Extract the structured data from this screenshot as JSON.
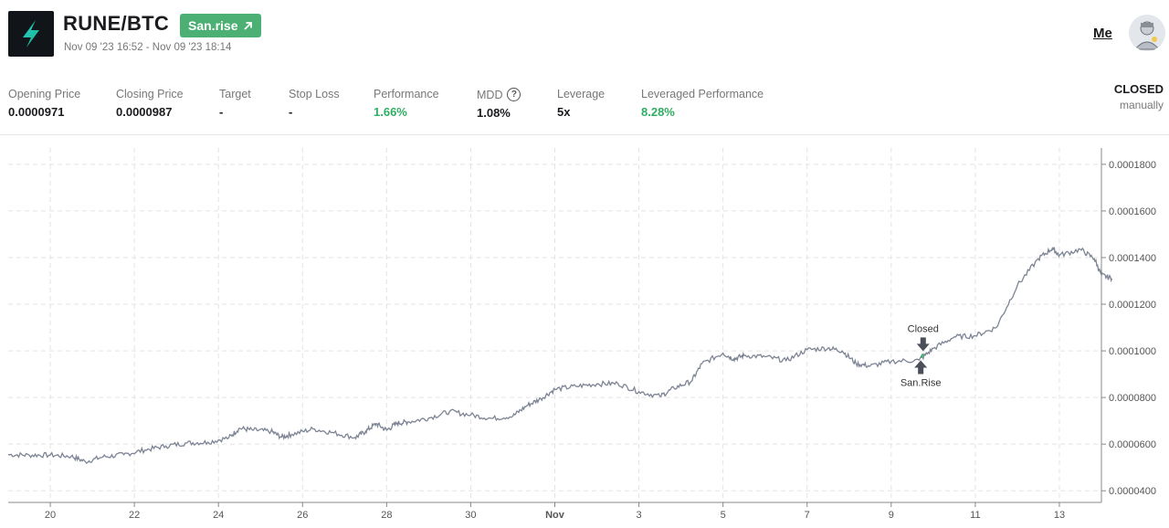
{
  "header": {
    "pair": "RUNE/BTC",
    "badge_label": "San.rise",
    "date_range": "Nov 09 '23 16:52 - Nov 09 '23 18:14",
    "user_link": "Me",
    "logo_icon": "thorchain-logo-icon",
    "badge_icon": "arrow-up-right-icon",
    "avatar_icon": "user-avatar-icon"
  },
  "stats": [
    {
      "label": "Opening Price",
      "value": "0.0000971",
      "tone": "normal"
    },
    {
      "label": "Closing Price",
      "value": "0.0000987",
      "tone": "normal"
    },
    {
      "label": "Target",
      "value": "-",
      "tone": "normal"
    },
    {
      "label": "Stop Loss",
      "value": "-",
      "tone": "normal"
    },
    {
      "label": "Performance",
      "value": "1.66%",
      "tone": "positive"
    },
    {
      "label": "MDD",
      "value": "1.08%",
      "tone": "normal",
      "help": true
    },
    {
      "label": "Leverage",
      "value": "5x",
      "tone": "normal"
    },
    {
      "label": "Leveraged Performance",
      "value": "8.28%",
      "tone": "positive"
    }
  ],
  "status": {
    "state": "CLOSED",
    "reason": "manually"
  },
  "colors": {
    "positive": "#2fae62",
    "badge": "#4caf73",
    "line": "#7d8494",
    "marker": "#4a4f59"
  },
  "chart_data": {
    "type": "line",
    "xlabel": "",
    "ylabel": "",
    "x_axis": {
      "type": "date",
      "range": [
        "2023-10-19",
        "2023-11-14"
      ],
      "tick_labels": [
        "20",
        "22",
        "24",
        "26",
        "28",
        "30",
        "Nov",
        "3",
        "5",
        "7",
        "9",
        "11",
        "13"
      ],
      "tick_dates": [
        "2023-10-20",
        "2023-10-22",
        "2023-10-24",
        "2023-10-26",
        "2023-10-28",
        "2023-10-30",
        "2023-11-01",
        "2023-11-03",
        "2023-11-05",
        "2023-11-07",
        "2023-11-09",
        "2023-11-11",
        "2023-11-13"
      ]
    },
    "y_axis": {
      "position": "right",
      "range": [
        3.5e-05,
        0.000187
      ],
      "tick_labels": [
        "0.0000400",
        "0.0000600",
        "0.0000800",
        "0.0001000",
        "0.0001200",
        "0.0001400",
        "0.0001600",
        "0.0001800"
      ],
      "ticks": [
        4e-05,
        6e-05,
        8e-05,
        0.0001,
        0.00012,
        0.00014,
        0.00016,
        0.00018
      ]
    },
    "grid": true,
    "series": [
      {
        "points": [
          [
            "2023-10-19 00:00",
            5.55e-05
          ],
          [
            "2023-10-19 12:00",
            5.53e-05
          ],
          [
            "2023-10-20 00:00",
            5.53e-05
          ],
          [
            "2023-10-20 12:00",
            5.48e-05
          ],
          [
            "2023-10-20 20:00",
            5.25e-05
          ],
          [
            "2023-10-21 06:00",
            5.45e-05
          ],
          [
            "2023-10-21 18:00",
            5.55e-05
          ],
          [
            "2023-10-22 06:00",
            5.75e-05
          ],
          [
            "2023-10-22 18:00",
            5.92e-05
          ],
          [
            "2023-10-23 06:00",
            6.05e-05
          ],
          [
            "2023-10-23 18:00",
            6.08e-05
          ],
          [
            "2023-10-24 06:00",
            6.28e-05
          ],
          [
            "2023-10-24 12:00",
            6.68e-05
          ],
          [
            "2023-10-24 20:00",
            6.6e-05
          ],
          [
            "2023-10-25 06:00",
            6.55e-05
          ],
          [
            "2023-10-25 12:00",
            6.3e-05
          ],
          [
            "2023-10-25 18:00",
            6.42e-05
          ],
          [
            "2023-10-26 06:00",
            6.65e-05
          ],
          [
            "2023-10-26 18:00",
            6.48e-05
          ],
          [
            "2023-10-27 06:00",
            6.28e-05
          ],
          [
            "2023-10-27 12:00",
            6.55e-05
          ],
          [
            "2023-10-27 18:00",
            6.88e-05
          ],
          [
            "2023-10-28 00:00",
            6.6e-05
          ],
          [
            "2023-10-28 06:00",
            6.9e-05
          ],
          [
            "2023-10-28 12:00",
            6.95e-05
          ],
          [
            "2023-10-29 00:00",
            7.12e-05
          ],
          [
            "2023-10-29 12:00",
            7.4e-05
          ],
          [
            "2023-10-30 00:00",
            7.25e-05
          ],
          [
            "2023-10-30 12:00",
            7.1e-05
          ],
          [
            "2023-10-31 00:00",
            7.2e-05
          ],
          [
            "2023-10-31 08:00",
            7.65e-05
          ],
          [
            "2023-10-31 16:00",
            7.95e-05
          ],
          [
            "2023-11-01 00:00",
            8.35e-05
          ],
          [
            "2023-11-01 12:00",
            8.48e-05
          ],
          [
            "2023-11-02 00:00",
            8.58e-05
          ],
          [
            "2023-11-02 12:00",
            8.6e-05
          ],
          [
            "2023-11-03 00:00",
            8.25e-05
          ],
          [
            "2023-11-03 12:00",
            8.05e-05
          ],
          [
            "2023-11-03 20:00",
            8.4e-05
          ],
          [
            "2023-11-04 06:00",
            8.7e-05
          ],
          [
            "2023-11-04 12:00",
            9.45e-05
          ],
          [
            "2023-11-05 00:00",
            9.9e-05
          ],
          [
            "2023-11-05 06:00",
            9.65e-05
          ],
          [
            "2023-11-05 12:00",
            9.8e-05
          ],
          [
            "2023-11-06 00:00",
            9.75e-05
          ],
          [
            "2023-11-06 12:00",
            9.58e-05
          ],
          [
            "2023-11-07 00:00",
            0.0001005
          ],
          [
            "2023-11-07 12:00",
            0.0001012
          ],
          [
            "2023-11-07 20:00",
            0.0001
          ],
          [
            "2023-11-08 04:00",
            9.45e-05
          ],
          [
            "2023-11-08 12:00",
            9.35e-05
          ],
          [
            "2023-11-09 00:00",
            9.55e-05
          ],
          [
            "2023-11-09 16:00",
            9.6e-05
          ],
          [
            "2023-11-10 00:00",
            0.000101
          ],
          [
            "2023-11-10 12:00",
            0.000106
          ],
          [
            "2023-11-11 00:00",
            0.0001065
          ],
          [
            "2023-11-11 12:00",
            0.00011
          ],
          [
            "2023-11-12 00:00",
            0.000128
          ],
          [
            "2023-11-12 12:00",
            0.0001395
          ],
          [
            "2023-11-12 20:00",
            0.000144
          ],
          [
            "2023-11-13 00:00",
            0.000141
          ],
          [
            "2023-11-13 12:00",
            0.0001435
          ],
          [
            "2023-11-13 20:00",
            0.0001395
          ],
          [
            "2023-11-14 00:00",
            0.0001325
          ],
          [
            "2023-11-14 06:00",
            0.000131
          ]
        ]
      }
    ],
    "annotations": [
      {
        "label": "San.Rise",
        "date": "2023-11-09 16:52",
        "price": 9.71e-05,
        "marker": "up-arrow",
        "text_position": "below"
      },
      {
        "label": "Closed",
        "date": "2023-11-09 18:14",
        "price": 9.87e-05,
        "marker": "down-arrow",
        "text_position": "above"
      }
    ]
  }
}
